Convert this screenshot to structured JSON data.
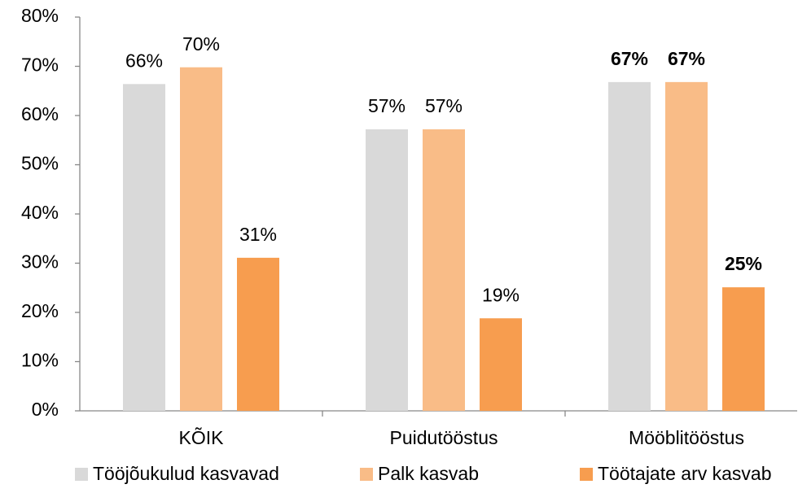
{
  "chart_data": {
    "type": "bar",
    "categories": [
      "KÕIK",
      "Puidutööstus",
      "Mööblitööstus"
    ],
    "series": [
      {
        "name": "Tööjõukulud kasvavad",
        "color": "#d9d9d9",
        "values": [
          66.4,
          57.2,
          66.8
        ],
        "value_labels": [
          "66%",
          "57%",
          "67%"
        ]
      },
      {
        "name": "Palk kasvab",
        "color": "#f9bc87",
        "values": [
          69.8,
          57.2,
          66.8
        ],
        "value_labels": [
          "70%",
          "57%",
          "67%"
        ]
      },
      {
        "name": "Töötajate arv kasvab",
        "color": "#f79d4f",
        "values": [
          31.1,
          18.8,
          25.1
        ],
        "value_labels": [
          "31%",
          "19%",
          "25%"
        ]
      }
    ],
    "bold_label_categories": [
      2
    ],
    "ylim": [
      0,
      80
    ],
    "yticks": [
      {
        "value": 0,
        "label": "0%"
      },
      {
        "value": 10,
        "label": "10%"
      },
      {
        "value": 20,
        "label": "20%"
      },
      {
        "value": 30,
        "label": "30%"
      },
      {
        "value": 40,
        "label": "40%"
      },
      {
        "value": 50,
        "label": "50%"
      },
      {
        "value": 60,
        "label": "60%"
      },
      {
        "value": 70,
        "label": "70%"
      },
      {
        "value": 80,
        "label": "80%"
      }
    ],
    "grid": false,
    "legend": "bottom"
  }
}
